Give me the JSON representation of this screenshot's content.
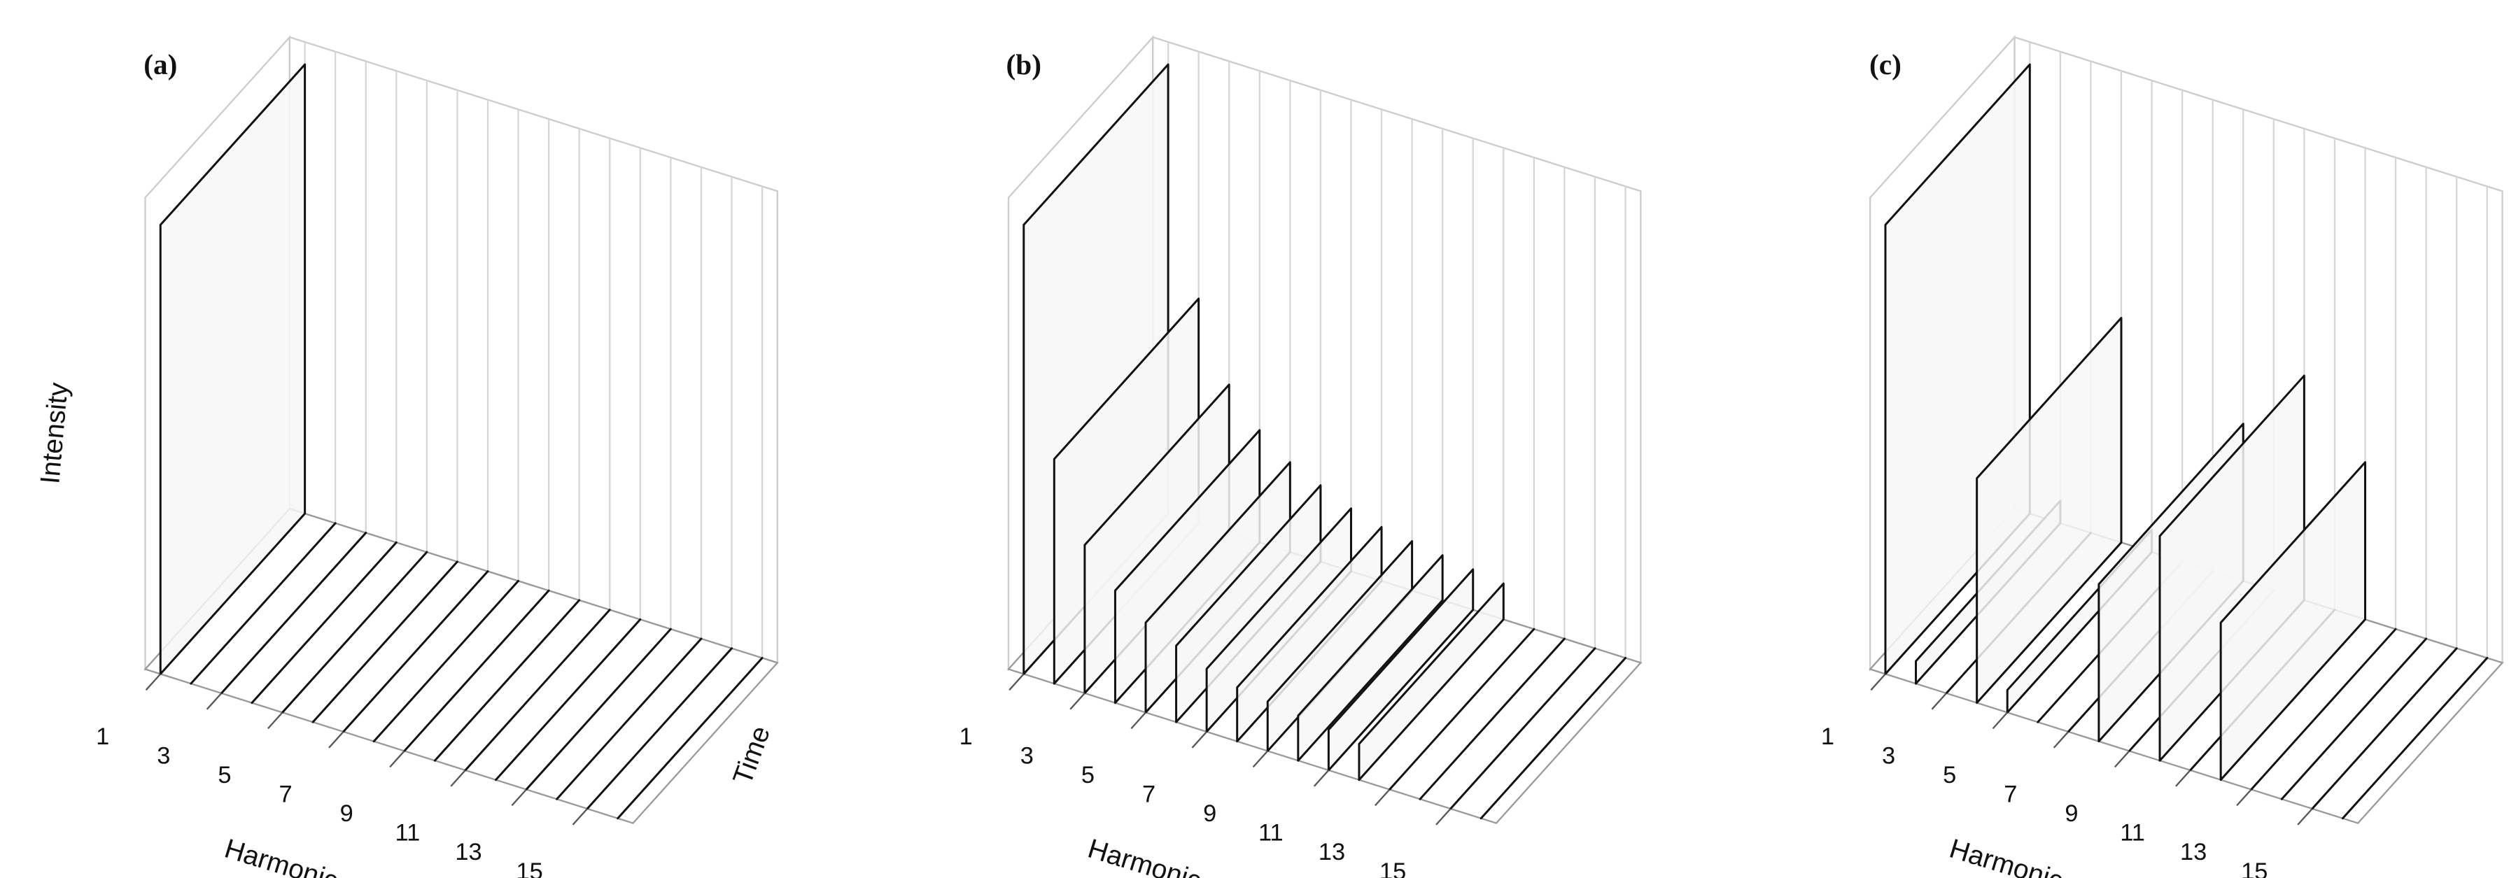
{
  "chart_data": [
    {
      "type": "waterfall",
      "title": "(a)",
      "x": [
        1,
        2,
        3,
        4,
        5,
        6,
        7,
        8,
        9,
        10,
        11,
        12,
        13,
        14,
        15,
        16
      ],
      "values": [
        1.0,
        0,
        0,
        0,
        0,
        0,
        0,
        0,
        0,
        0,
        0,
        0,
        0,
        0,
        0,
        0
      ],
      "zlim": [
        0,
        1
      ],
      "xticks": [
        1,
        3,
        5,
        7,
        9,
        11,
        13,
        15
      ],
      "xlabel": "Harmonic",
      "ylabel": "Time",
      "zlabel": "Intensity"
    },
    {
      "type": "waterfall",
      "title": "(b)",
      "x": [
        1,
        2,
        3,
        4,
        5,
        6,
        7,
        8,
        9,
        10,
        11,
        12,
        13,
        14,
        15,
        16
      ],
      "values": [
        1.0,
        0.5,
        0.33,
        0.25,
        0.2,
        0.17,
        0.14,
        0.12,
        0.11,
        0.1,
        0.09,
        0.08,
        0,
        0,
        0,
        0
      ],
      "zlim": [
        0,
        1
      ],
      "xticks": [
        1,
        3,
        5,
        7,
        9,
        11,
        13,
        15
      ],
      "xlabel": "Harmonic"
    },
    {
      "type": "waterfall",
      "title": "(c)",
      "x": [
        1,
        2,
        3,
        4,
        5,
        6,
        7,
        8,
        9,
        10,
        11,
        12,
        13,
        14,
        15,
        16
      ],
      "values": [
        1.0,
        0.05,
        0,
        0.5,
        0.05,
        0,
        0,
        0.35,
        0,
        0.5,
        0,
        0.35,
        0,
        0,
        0,
        0
      ],
      "zlim": [
        0,
        1
      ],
      "xticks": [
        1,
        3,
        5,
        7,
        9,
        11,
        13,
        15
      ],
      "xlabel": "Harmonic"
    }
  ]
}
